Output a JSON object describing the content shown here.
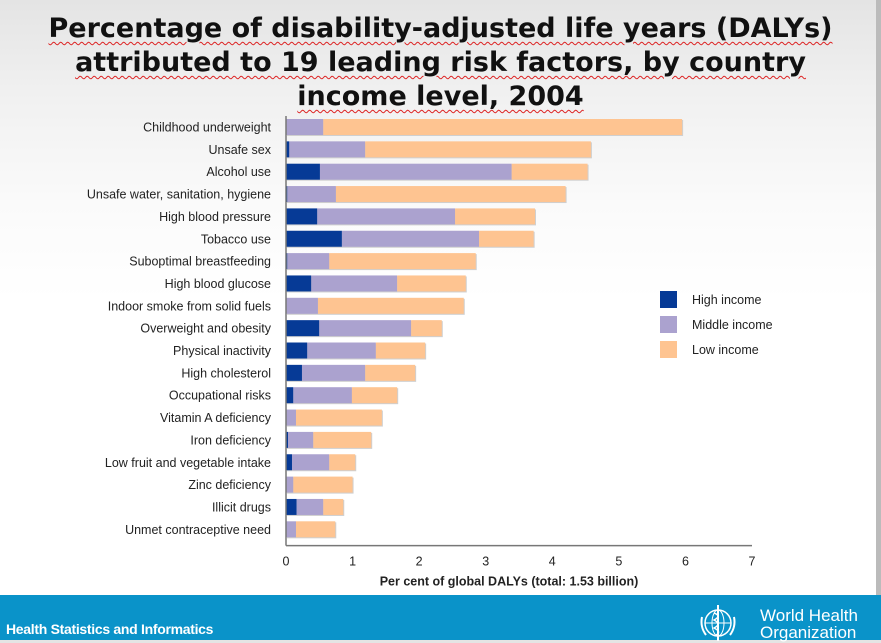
{
  "title_lines": [
    "Percentage of disability-adjusted life years (DALYs)",
    "attributed to 19 leading risk factors, by country",
    "income level, 2004"
  ],
  "footer": {
    "left_text": "Health Statistics and Informatics",
    "org_line1": "World Health",
    "org_line2": "Organization",
    "logo_icon": "who-emblem-icon"
  },
  "colors": {
    "high": "#063a96",
    "middle": "#aba2cf",
    "low": "#fec491",
    "footer_bg": "#0a93c9"
  },
  "chart_data": {
    "type": "bar",
    "orientation": "horizontal",
    "stacked": true,
    "title": "Percentage of disability-adjusted life years (DALYs) attributed to 19 leading risk factors, by country income level, 2004",
    "xlabel": "Per cent of global DALYs (total: 1.53 billion)",
    "ylabel": "",
    "xlim": [
      0,
      7
    ],
    "xticks": [
      "0",
      "1",
      "2",
      "3",
      "4",
      "5",
      "6",
      "7"
    ],
    "grid": false,
    "legend_position": "right",
    "categories": [
      "Childhood underweight",
      "Unsafe sex",
      "Alcohol use",
      "Unsafe water, sanitation, hygiene",
      "High blood pressure",
      "Tobacco use",
      "Suboptimal breastfeeding",
      "High blood glucose",
      "Indoor smoke from solid fuels",
      "Overweight and obesity",
      "Physical inactivity",
      "High cholesterol",
      "Occupational risks",
      "Vitamin A deficiency",
      "Iron deficiency",
      "Low fruit and vegetable intake",
      "Zinc deficiency",
      "Illicit drugs",
      "Unmet contraceptive need"
    ],
    "series": [
      {
        "name": "High income",
        "color_key": "high",
        "values": [
          0.0,
          0.05,
          0.51,
          0.02,
          0.47,
          0.84,
          0.02,
          0.38,
          0.0,
          0.5,
          0.32,
          0.24,
          0.11,
          0.0,
          0.03,
          0.09,
          0.0,
          0.16,
          0.0
        ]
      },
      {
        "name": "Middle income",
        "color_key": "middle",
        "values": [
          0.56,
          1.14,
          2.88,
          0.73,
          2.07,
          2.06,
          0.63,
          1.29,
          0.48,
          1.38,
          1.03,
          0.95,
          0.88,
          0.15,
          0.38,
          0.56,
          0.11,
          0.4,
          0.15
        ]
      },
      {
        "name": "Low income",
        "color_key": "low",
        "values": [
          5.39,
          3.39,
          1.14,
          3.45,
          1.2,
          0.82,
          2.2,
          1.03,
          2.19,
          0.46,
          0.74,
          0.75,
          0.68,
          1.29,
          0.87,
          0.39,
          0.89,
          0.3,
          0.59
        ]
      }
    ]
  }
}
